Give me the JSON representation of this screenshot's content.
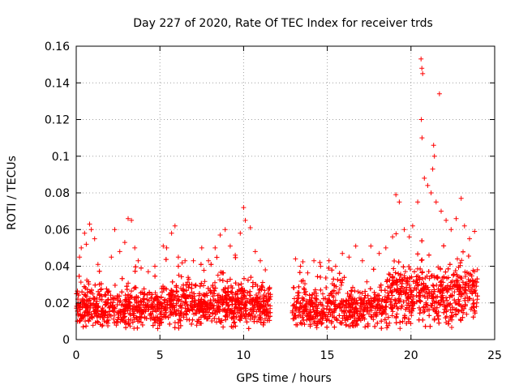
{
  "chart_data": {
    "type": "scatter",
    "title": "Day 227 of 2020, Rate Of TEC Index for receiver trds",
    "xlabel": "GPS time / hours",
    "ylabel": "ROTI / TECUs",
    "xlim": [
      0,
      25
    ],
    "ylim": [
      0,
      0.16
    ],
    "xticks": [
      0,
      5,
      10,
      15,
      20,
      25
    ],
    "yticks": [
      0,
      0.02,
      0.04,
      0.06,
      0.08,
      0.1,
      0.12,
      0.14,
      0.16
    ],
    "xtick_labels": [
      "0",
      "5",
      "10",
      "15",
      "20",
      "25"
    ],
    "ytick_labels": [
      "0",
      "0.02",
      "0.04",
      "0.06",
      "0.08",
      "0.1",
      "0.12",
      "0.14",
      "0.16"
    ],
    "grid": true,
    "marker": "+",
    "color": "#ff0000",
    "data_gap_hours": [
      11.6,
      12.9
    ],
    "points": [
      [
        0.2,
        0.045
      ],
      [
        0.3,
        0.05
      ],
      [
        0.5,
        0.058
      ],
      [
        0.6,
        0.052
      ],
      [
        0.8,
        0.063
      ],
      [
        0.9,
        0.06
      ],
      [
        1.1,
        0.055
      ],
      [
        1.3,
        0.041
      ],
      [
        2.1,
        0.045
      ],
      [
        2.3,
        0.06
      ],
      [
        2.6,
        0.048
      ],
      [
        2.9,
        0.053
      ],
      [
        3.1,
        0.066
      ],
      [
        3.3,
        0.065
      ],
      [
        3.5,
        0.05
      ],
      [
        3.7,
        0.043
      ],
      [
        4.3,
        0.037
      ],
      [
        4.7,
        0.04
      ],
      [
        5.2,
        0.051
      ],
      [
        5.4,
        0.05
      ],
      [
        5.7,
        0.058
      ],
      [
        5.9,
        0.062
      ],
      [
        6.1,
        0.045
      ],
      [
        6.5,
        0.043
      ],
      [
        7.0,
        0.043
      ],
      [
        7.5,
        0.05
      ],
      [
        7.9,
        0.043
      ],
      [
        8.3,
        0.05
      ],
      [
        8.6,
        0.057
      ],
      [
        8.9,
        0.06
      ],
      [
        9.2,
        0.051
      ],
      [
        9.5,
        0.046
      ],
      [
        9.8,
        0.058
      ],
      [
        10.0,
        0.072
      ],
      [
        10.1,
        0.065
      ],
      [
        10.4,
        0.061
      ],
      [
        10.7,
        0.048
      ],
      [
        11.0,
        0.043
      ],
      [
        11.3,
        0.038
      ],
      [
        13.1,
        0.044
      ],
      [
        13.4,
        0.04
      ],
      [
        14.2,
        0.043
      ],
      [
        14.6,
        0.04
      ],
      [
        15.1,
        0.043
      ],
      [
        15.5,
        0.04
      ],
      [
        15.9,
        0.047
      ],
      [
        16.3,
        0.045
      ],
      [
        16.7,
        0.051
      ],
      [
        17.1,
        0.043
      ],
      [
        17.6,
        0.051
      ],
      [
        18.1,
        0.047
      ],
      [
        18.5,
        0.05
      ],
      [
        18.9,
        0.056
      ],
      [
        19.1,
        0.079
      ],
      [
        19.3,
        0.075
      ],
      [
        19.6,
        0.06
      ],
      [
        19.9,
        0.056
      ],
      [
        20.1,
        0.062
      ],
      [
        20.4,
        0.075
      ],
      [
        20.6,
        0.153
      ],
      [
        20.65,
        0.148
      ],
      [
        20.7,
        0.145
      ],
      [
        20.62,
        0.12
      ],
      [
        20.66,
        0.11
      ],
      [
        20.8,
        0.088
      ],
      [
        21.0,
        0.084
      ],
      [
        21.2,
        0.08
      ],
      [
        21.3,
        0.093
      ],
      [
        21.35,
        0.106
      ],
      [
        21.4,
        0.1
      ],
      [
        21.5,
        0.075
      ],
      [
        21.7,
        0.134
      ],
      [
        21.8,
        0.07
      ],
      [
        22.1,
        0.065
      ],
      [
        22.4,
        0.06
      ],
      [
        22.7,
        0.066
      ],
      [
        23.0,
        0.077
      ],
      [
        23.2,
        0.062
      ],
      [
        23.5,
        0.055
      ],
      [
        23.8,
        0.059
      ]
    ]
  }
}
